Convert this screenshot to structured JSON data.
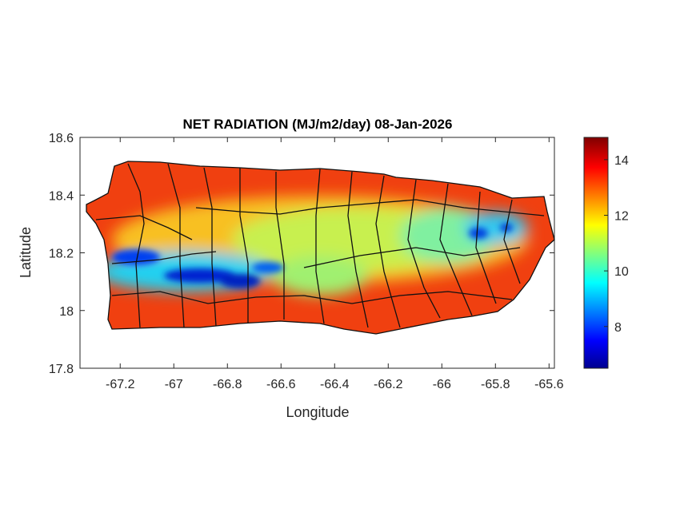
{
  "chart_data": {
    "type": "heatmap",
    "title": "NET RADIATION (MJ/m2/day) 08-Jan-2026",
    "xlabel": "Longitude",
    "ylabel": "Latitude",
    "xlim": [
      -67.35,
      -65.58
    ],
    "ylim": [
      17.8,
      18.6
    ],
    "xticks": [
      -67.2,
      -67,
      -66.8,
      -66.6,
      -66.4,
      -66.2,
      -66,
      -65.8,
      -65.6
    ],
    "xtick_labels": [
      "-67.2",
      "-67",
      "-66.8",
      "-66.6",
      "-66.4",
      "-66.2",
      "-66",
      "-65.8",
      "-65.6"
    ],
    "yticks": [
      17.8,
      18,
      18.2,
      18.4,
      18.6
    ],
    "ytick_labels": [
      "17.8",
      "18",
      "18.2",
      "18.4",
      "18.6"
    ],
    "colorbar": {
      "colormap": "jet",
      "range": [
        6.5,
        14.8
      ],
      "ticks": [
        8,
        10,
        12,
        14
      ],
      "tick_labels": [
        "8",
        "10",
        "12",
        "14"
      ]
    },
    "region": "Puerto Rico municipalities",
    "value_range": [
      6.5,
      14.8
    ],
    "pattern": "High values (13-15) along north, south and east coasts; low values (7-10) along central mountain band from west (-67.15,18.15) to east (-65.85,18.28)"
  }
}
